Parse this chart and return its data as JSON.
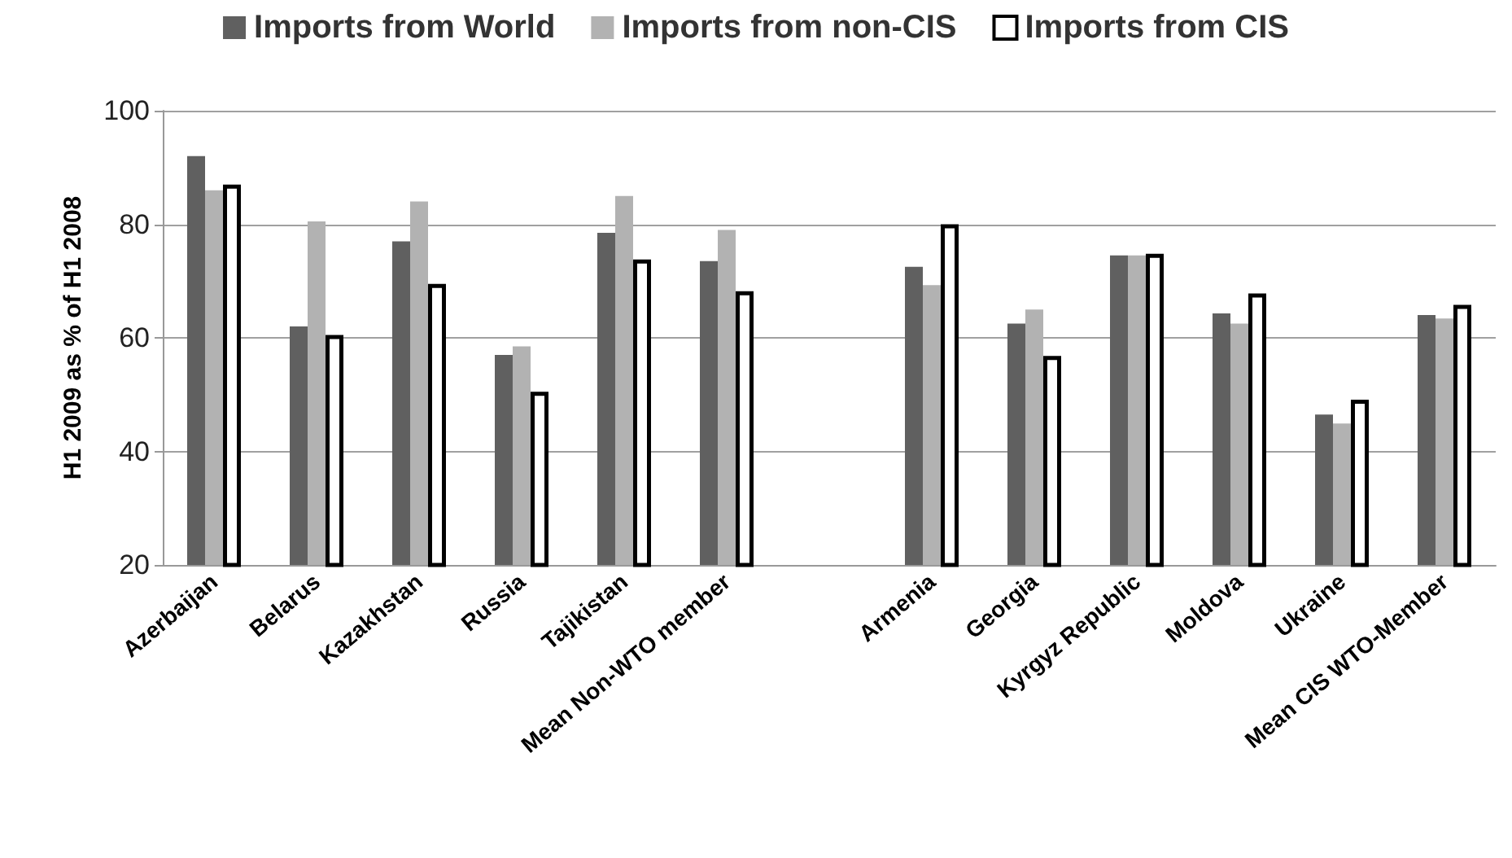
{
  "chart_data": {
    "type": "bar",
    "ylabel": "H1 2009 as % of H1 2008",
    "categories": [
      "Azerbaijan",
      "Belarus",
      "Kazakhstan",
      "Russia",
      "Tajikistan",
      "Mean Non-WTO member",
      null,
      "Armenia",
      "Georgia",
      "Kyrgyz Republic",
      "Moldova",
      "Ukraine",
      "Mean CIS WTO-Member"
    ],
    "series": [
      {
        "name": "Imports from World",
        "color": "#606060",
        "values": [
          92,
          62,
          77,
          57,
          78.5,
          73.5,
          null,
          72.5,
          62.5,
          74.5,
          64.3,
          46.5,
          64
        ]
      },
      {
        "name": "Imports from non-CIS",
        "color": "#b2b2b2",
        "values": [
          86,
          80.5,
          84,
          58.5,
          85,
          79,
          null,
          69.3,
          65,
          74.5,
          62.5,
          44.9,
          63.4
        ]
      },
      {
        "name": "Imports from CIS",
        "color": "#ffffff",
        "values": [
          87,
          60.5,
          69.5,
          50.5,
          73.8,
          68.2,
          null,
          80,
          56.8,
          74.8,
          67.8,
          49.1,
          65.8
        ]
      }
    ],
    "ylim": [
      20,
      100
    ],
    "yticks": [
      20,
      40,
      60,
      80,
      100
    ],
    "grid": "y",
    "legend": "top"
  }
}
